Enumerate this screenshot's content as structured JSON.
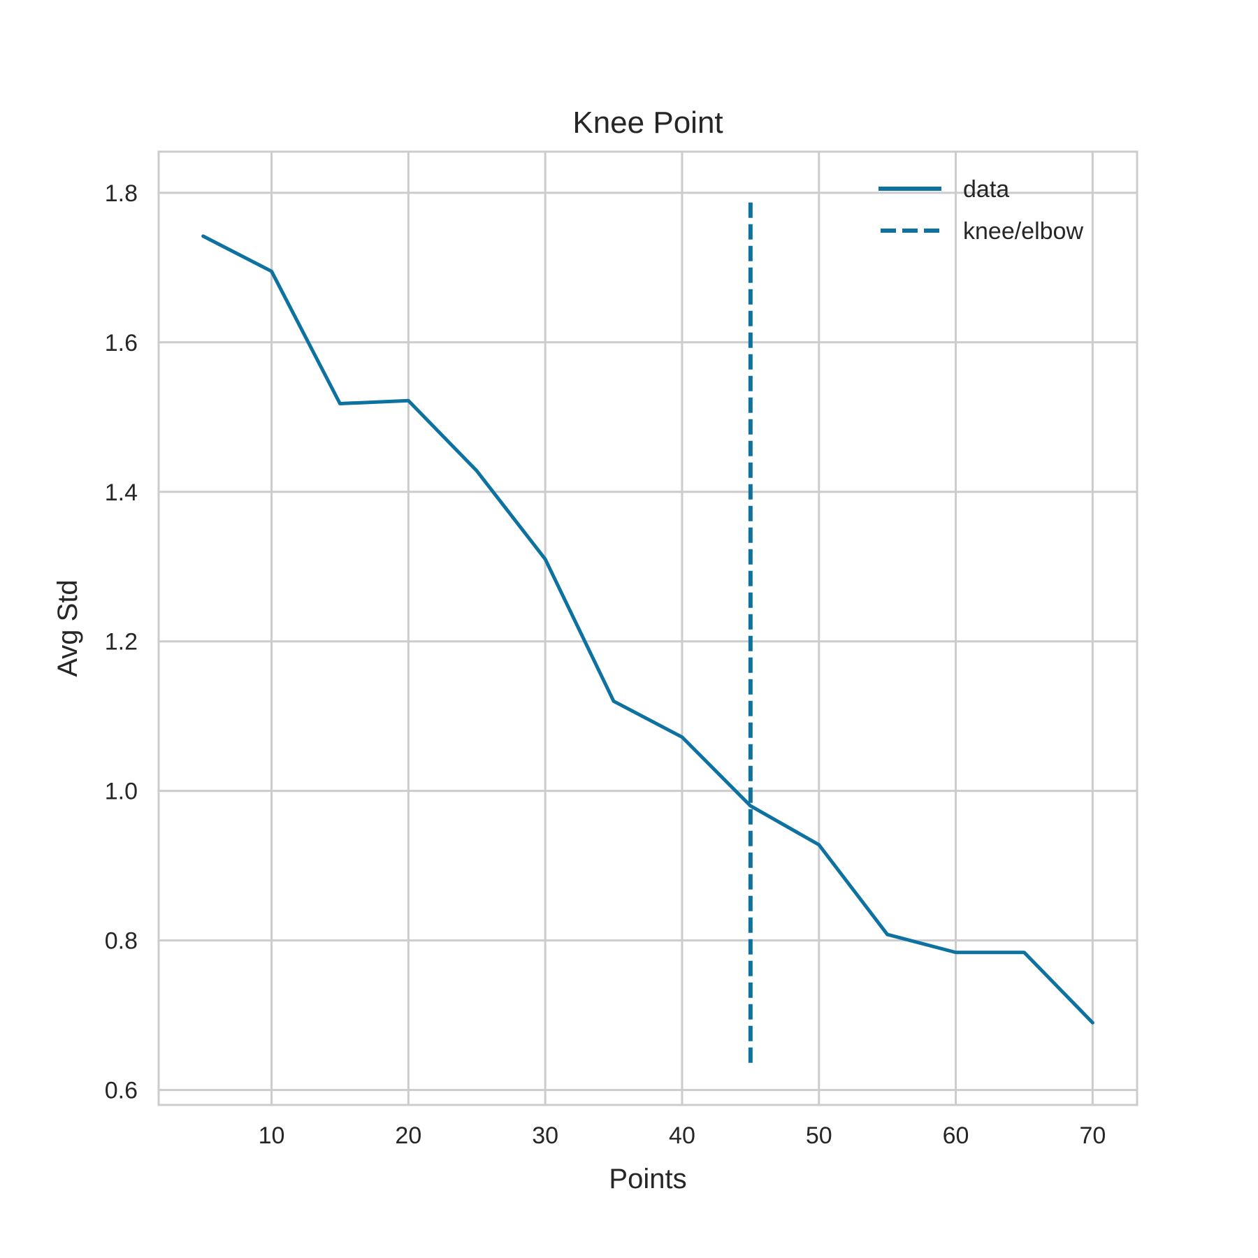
{
  "chart_data": {
    "type": "line",
    "title": "Knee Point",
    "xlabel": "Points",
    "ylabel": "Avg Std",
    "xlim": [
      1.75,
      73.25
    ],
    "ylim": [
      0.58,
      1.855
    ],
    "x_ticks": [
      10,
      20,
      30,
      40,
      50,
      60,
      70
    ],
    "y_ticks": [
      0.6,
      0.8,
      1.0,
      1.2,
      1.4,
      1.6,
      1.8
    ],
    "y_tick_labels": [
      "0.6",
      "0.8",
      "1.0",
      "1.2",
      "1.4",
      "1.6",
      "1.8"
    ],
    "grid": true,
    "legend_position": "top-right",
    "series": [
      {
        "name": "data",
        "style": "solid",
        "color": "#0e72a0",
        "x": [
          5,
          10,
          15,
          20,
          25,
          30,
          35,
          40,
          45,
          50,
          55,
          60,
          65,
          70
        ],
        "y": [
          1.742,
          1.695,
          1.518,
          1.522,
          1.428,
          1.31,
          1.12,
          1.072,
          0.98,
          0.928,
          0.808,
          0.784,
          0.784,
          0.69
        ]
      }
    ],
    "knee": {
      "name": "knee/elbow",
      "style": "dashed",
      "color": "#0e72a0",
      "x": 45,
      "y_range": [
        0.635,
        1.787
      ]
    }
  }
}
